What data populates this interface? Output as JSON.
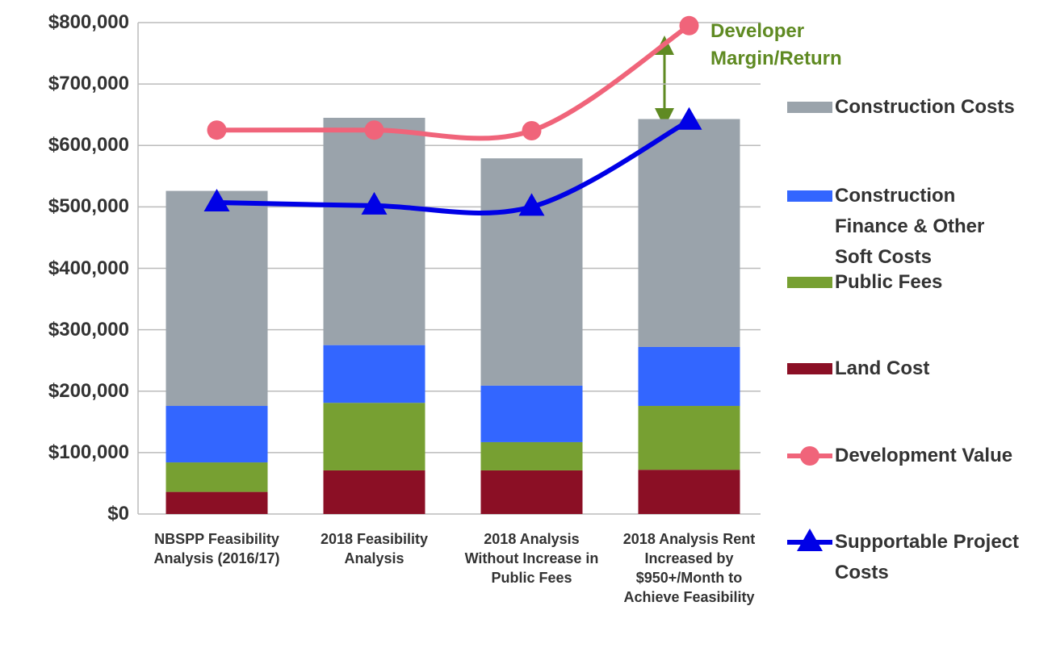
{
  "chart_data": {
    "type": "bar",
    "stacked": true,
    "categories": [
      "NBSPP Feasibility Analysis (2016/17)",
      "2018 Feasibility Analysis",
      "2018 Analysis Without Increase in Public Fees",
      "2018 Analysis Rent Increased by $950+/Month to Achieve Feasibility"
    ],
    "series": [
      {
        "name": "Land Cost",
        "type": "bar",
        "color": "#8b0f25",
        "values": [
          36000,
          71000,
          71000,
          72000
        ]
      },
      {
        "name": "Public Fees",
        "type": "bar",
        "color": "#77a032",
        "values": [
          48000,
          110000,
          46000,
          104000
        ]
      },
      {
        "name": "Construction Finance & Other Soft Costs",
        "type": "bar",
        "color": "#3366ff",
        "values": [
          92000,
          94000,
          92000,
          96000
        ]
      },
      {
        "name": "Construction Costs",
        "type": "bar",
        "color": "#9aa3ab",
        "values": [
          350000,
          370000,
          370000,
          371000
        ]
      },
      {
        "name": "Development Value",
        "type": "line",
        "marker": "circle",
        "color": "#f0647a",
        "values": [
          625000,
          625000,
          624000,
          795000
        ]
      },
      {
        "name": "Supportable Project Costs",
        "type": "line",
        "marker": "triangle",
        "color": "#0000e6",
        "values": [
          507000,
          502000,
          500000,
          640000
        ]
      }
    ],
    "legend_order": [
      3,
      2,
      1,
      0,
      4,
      5
    ],
    "annotation": "Developer Margin/Return",
    "ylim": [
      0,
      800000
    ],
    "yticks": [
      {
        "value": 0,
        "label": "$0"
      },
      {
        "value": 100000,
        "label": "$100,000"
      },
      {
        "value": 200000,
        "label": "$200,000"
      },
      {
        "value": 300000,
        "label": "$300,000"
      },
      {
        "value": 400000,
        "label": "$400,000"
      },
      {
        "value": 500000,
        "label": "$500,000"
      },
      {
        "value": 600000,
        "label": "$600,000"
      },
      {
        "value": 700000,
        "label": "$700,000"
      },
      {
        "value": 800000,
        "label": "$800,000"
      }
    ],
    "grid": true
  }
}
